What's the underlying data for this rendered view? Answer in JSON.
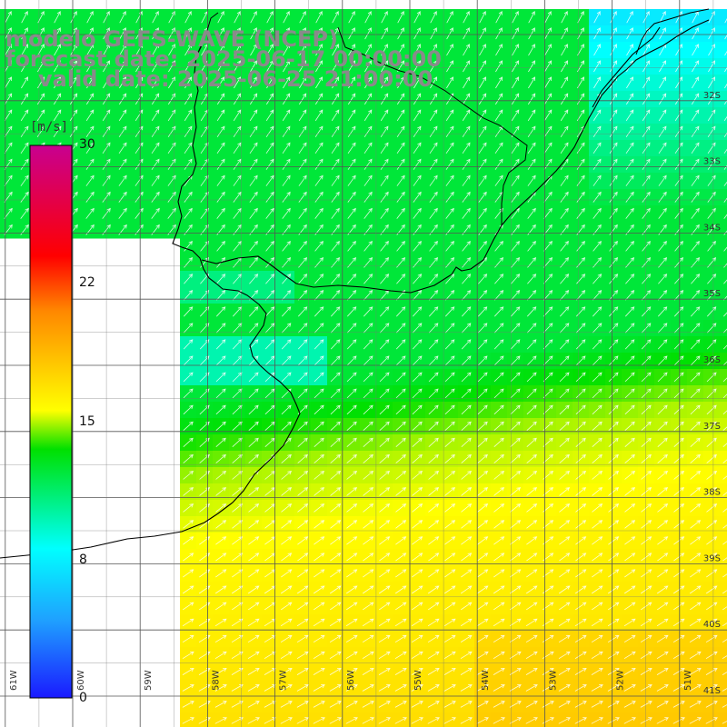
{
  "titles": {
    "line1": "modelo GEFS-WAVE (NCEP)",
    "line2": "forecast date: 2025-06-17 00:00:00",
    "line3": "valid date: 2025-06-25 21:00:00"
  },
  "colorbar": {
    "unit": "[m/s]",
    "ticks": [
      "30",
      "22",
      "15",
      "8",
      "0"
    ],
    "tick_values": [
      30,
      22,
      15,
      8,
      0
    ],
    "range": [
      0,
      30
    ],
    "colors": [
      "#1a1aff",
      "#1fa0ff",
      "#00ffff",
      "#00e000",
      "#ffff00",
      "#ff8800",
      "#ff0000",
      "#c80090"
    ],
    "color_stops": [
      0,
      0.14,
      0.27,
      0.45,
      0.52,
      0.7,
      0.8,
      1.0
    ]
  },
  "map": {
    "variable": "wind speed with direction arrows",
    "lon_labels": [
      "61W",
      "60W",
      "59W",
      "58W",
      "57W",
      "56W",
      "55W",
      "54W",
      "53W",
      "52W",
      "51W"
    ],
    "lat_labels": [
      "32S",
      "33S",
      "34S",
      "35S",
      "36S",
      "37S",
      "38S",
      "39S",
      "40S",
      "41S"
    ],
    "lon_range": [
      -61.3,
      -50.3
    ],
    "lat_range": [
      -41.2,
      -30.9
    ],
    "grid": true,
    "arrow_direction": "north-east"
  }
}
